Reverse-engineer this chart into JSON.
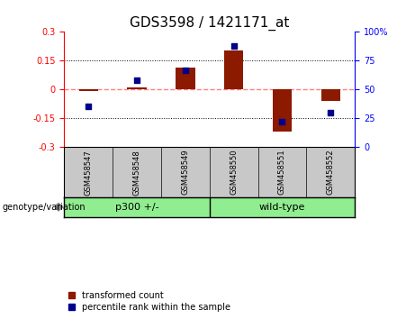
{
  "title": "GDS3598 / 1421171_at",
  "samples": [
    "GSM458547",
    "GSM458548",
    "GSM458549",
    "GSM458550",
    "GSM458551",
    "GSM458552"
  ],
  "transformed_counts": [
    -0.01,
    0.01,
    0.115,
    0.205,
    -0.22,
    -0.06
  ],
  "percentile_ranks": [
    35,
    58,
    67,
    88,
    22,
    30
  ],
  "group_spans": [
    {
      "label": "p300 +/-",
      "start": 0,
      "end": 2
    },
    {
      "label": "wild-type",
      "start": 3,
      "end": 5
    }
  ],
  "ylim_left": [
    -0.3,
    0.3
  ],
  "ylim_right": [
    0,
    100
  ],
  "yticks_left": [
    -0.3,
    -0.15,
    0,
    0.15,
    0.3
  ],
  "yticks_left_labels": [
    "-0.3",
    "-0.15",
    "0",
    "0.15",
    "0.3"
  ],
  "yticks_right": [
    0,
    25,
    50,
    75,
    100
  ],
  "yticks_right_labels": [
    "0",
    "25",
    "50",
    "75",
    "100%"
  ],
  "bar_color": "#8B1A00",
  "dot_color": "#00008B",
  "zero_line_color": "#FF8080",
  "hline_color": "#000000",
  "bg_color": "#ffffff",
  "label_bg_color": "#c8c8c8",
  "group_bg_color": "#90EE90",
  "label_fontsize": 7,
  "title_fontsize": 11,
  "legend_fontsize": 7,
  "sample_fontsize": 6,
  "genotype_fontsize": 7,
  "group_fontsize": 8,
  "bar_width": 0.4,
  "dot_size": 25
}
